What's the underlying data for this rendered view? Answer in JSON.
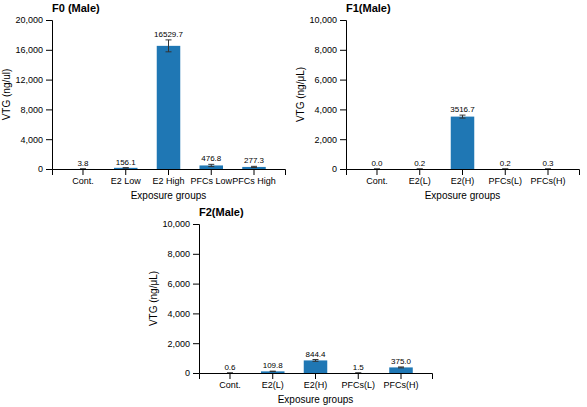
{
  "chart_data": [
    {
      "type": "bar",
      "title": "F0 (Male)",
      "categories": [
        "Cont.",
        "E2 Low",
        "E2 High",
        "PFCs Low",
        "PFCs High"
      ],
      "values": [
        3.8,
        156.1,
        16529.7,
        476.8,
        277.3
      ],
      "errors": [
        0,
        0,
        800,
        150,
        80
      ],
      "value_labels": [
        "3.8",
        "156.1",
        "16529.7",
        "476.8",
        "277.3"
      ],
      "data_labels": true,
      "ylabel": "VTG (ng/ul)",
      "xlabel": "Exposure groups",
      "ylim": [
        0,
        20000
      ],
      "yticks": [
        0,
        {
          "value": 4000,
          "label": "4,000"
        },
        {
          "value": 8000,
          "label": "8,000"
        },
        {
          "value": 12000,
          "label": "12,000"
        },
        {
          "value": 16000,
          "label": "16,000"
        },
        {
          "value": 20000,
          "label": "20,000"
        }
      ]
    },
    {
      "type": "bar",
      "title": "F1(Male)",
      "categories": [
        "Cont.",
        "E2(L)",
        "E2(H)",
        "PFCs(L)",
        "PFCs(H)"
      ],
      "values": [
        0.0,
        0.2,
        3516.7,
        0.2,
        0.3
      ],
      "errors": [
        0,
        0,
        100,
        0,
        0
      ],
      "value_labels": [
        "0.0",
        "0.2",
        "3516.7",
        "0.2",
        "0.3"
      ],
      "data_labels": true,
      "ylabel": "VTG (ng/μL)",
      "xlabel": "Exposure groups",
      "ylim": [
        0,
        10000
      ],
      "yticks": [
        0,
        {
          "value": 2000,
          "label": "2,000"
        },
        {
          "value": 4000,
          "label": "4,000"
        },
        {
          "value": 6000,
          "label": "6,000"
        },
        {
          "value": 8000,
          "label": "8,000"
        },
        {
          "value": 10000,
          "label": "10,000"
        }
      ]
    },
    {
      "type": "bar",
      "title": "F2(Male)",
      "categories": [
        "Cont.",
        "E2(L)",
        "E2(H)",
        "PFCs(L)",
        "PFCs(H)"
      ],
      "values": [
        0.6,
        109.8,
        844.4,
        1.5,
        375.0
      ],
      "errors": [
        0,
        15,
        60,
        0,
        30
      ],
      "value_labels": [
        "0.6",
        "109.8",
        "844.4",
        "1.5",
        "375.0"
      ],
      "data_labels": true,
      "ylabel": "VTG (ng/μL)",
      "xlabel": "Exposure groups",
      "ylim": [
        0,
        10000
      ],
      "yticks": [
        0,
        {
          "value": 2000,
          "label": "2,000"
        },
        {
          "value": 4000,
          "label": "4,000"
        },
        {
          "value": 6000,
          "label": "6,000"
        },
        {
          "value": 8000,
          "label": "8,000"
        },
        {
          "value": 10000,
          "label": "10,000"
        }
      ]
    }
  ]
}
